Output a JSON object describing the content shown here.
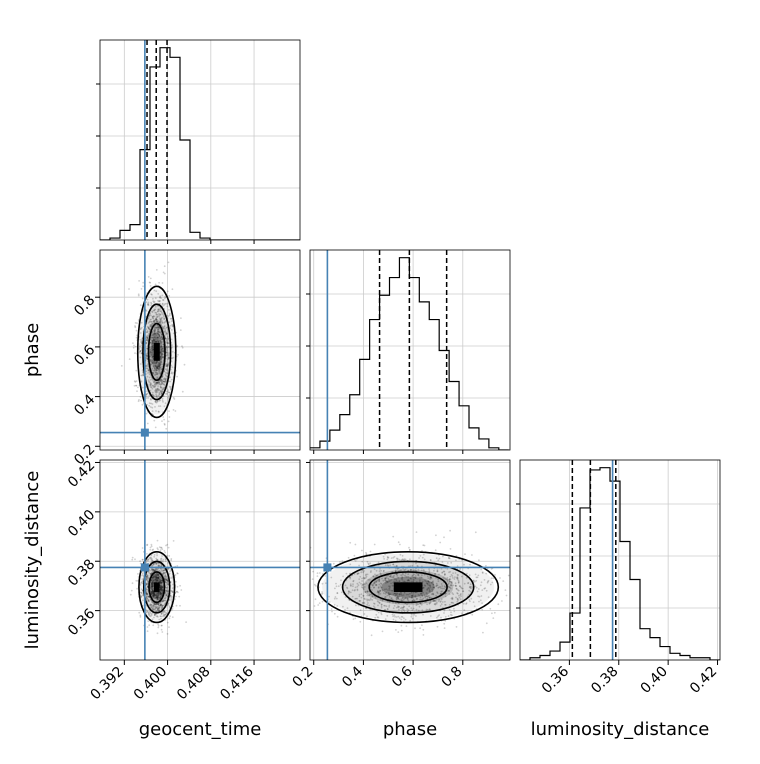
{
  "chart_data": {
    "type": "corner",
    "parameters": [
      {
        "name": "geocent_time",
        "truth": 0.3958,
        "range": [
          0.3875,
          0.4245
        ],
        "quantiles": [
          0.3962,
          0.3979,
          0.3999
        ],
        "ticks": [
          0.392,
          0.4,
          0.408,
          0.416
        ],
        "tick_labels": [
          "0.392",
          "0.400",
          "0.408",
          "0.416"
        ]
      },
      {
        "name": "phase",
        "truth": 0.255,
        "range": [
          0.185,
          0.99
        ],
        "quantiles": [
          0.465,
          0.585,
          0.735
        ],
        "ticks": [
          0.2,
          0.4,
          0.6,
          0.8
        ],
        "tick_labels": [
          "0.2",
          "0.4",
          "0.6",
          "0.8"
        ]
      },
      {
        "name": "luminosity_distance",
        "truth": 0.3775,
        "range": [
          0.34,
          0.421
        ],
        "quantiles": [
          0.3612,
          0.3685,
          0.3788
        ],
        "ticks": [
          0.36,
          0.38,
          0.4,
          0.42
        ],
        "tick_labels": [
          "0.36",
          "0.38",
          "0.40",
          "0.42"
        ]
      }
    ],
    "histograms": [
      {
        "parameter": "geocent_time",
        "x_start": 0.3875,
        "bin_width": 0.00185,
        "counts": [
          0,
          1,
          5,
          8,
          47,
          90,
          100,
          95,
          52,
          4,
          1,
          0,
          0,
          0,
          0,
          0,
          0,
          0,
          0,
          0
        ]
      },
      {
        "parameter": "phase",
        "x_start": 0.185,
        "bin_width": 0.04,
        "counts": [
          1,
          4,
          9,
          16,
          25,
          41,
          59,
          70,
          78,
          87,
          78,
          67,
          59,
          45,
          31,
          20,
          10,
          5,
          1,
          0
        ]
      },
      {
        "parameter": "luminosity_distance",
        "x_start": 0.34,
        "bin_width": 0.00405,
        "counts": [
          0,
          1,
          2,
          4,
          8,
          21,
          68,
          85,
          86,
          80,
          53,
          36,
          14,
          10,
          6,
          3,
          2,
          1,
          1,
          0
        ]
      }
    ],
    "pairs": [
      {
        "x": "geocent_time",
        "y": "phase",
        "center": [
          0.398,
          0.58
        ],
        "spread": [
          0.0016,
          0.12
        ]
      },
      {
        "x": "geocent_time",
        "y": "luminosity_distance",
        "center": [
          0.398,
          0.3695
        ],
        "spread": [
          0.0015,
          0.0065
        ]
      },
      {
        "x": "phase",
        "y": "luminosity_distance",
        "center": [
          0.58,
          0.3695
        ],
        "spread": [
          0.165,
          0.0065
        ]
      }
    ],
    "truth_color": "#4682b4",
    "grid": true
  }
}
